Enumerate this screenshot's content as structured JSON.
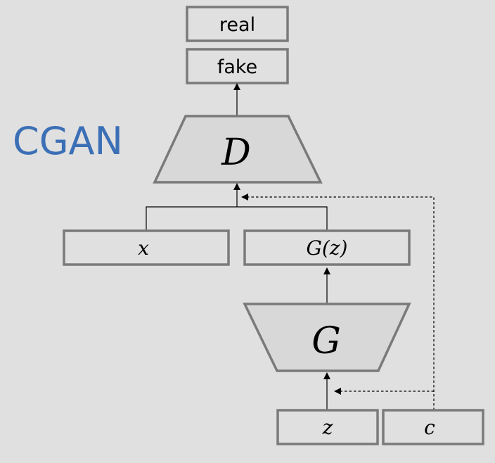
{
  "title": "CGAN",
  "outputs": {
    "real": "real",
    "fake": "fake"
  },
  "discriminator": {
    "label": "D"
  },
  "generator": {
    "label": "G"
  },
  "inputs": {
    "x": "x",
    "gz": "G(z)",
    "z": "z",
    "c": "c"
  },
  "colors": {
    "background": "#e0e0e0",
    "box_border": "#7a7a7a",
    "title": "#3b6fb6"
  }
}
